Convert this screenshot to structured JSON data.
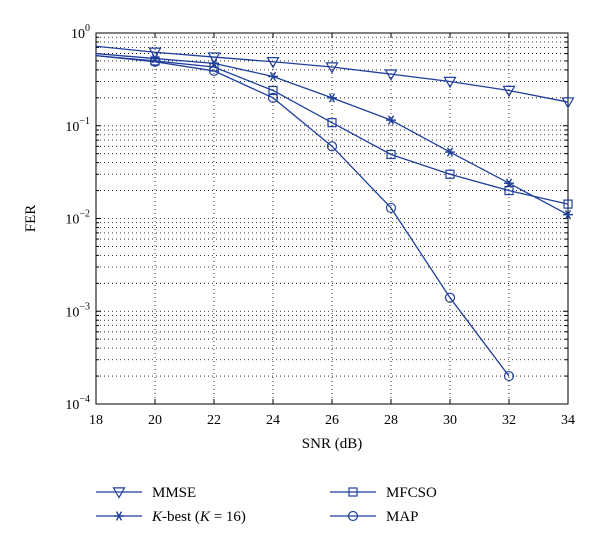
{
  "chart_data": {
    "type": "line",
    "title": "",
    "xlabel": "SNR (dB)",
    "ylabel": "FER",
    "xscale": "linear",
    "yscale": "log",
    "xlim": [
      18,
      34
    ],
    "ylim": [
      0.0001,
      1
    ],
    "xticks": [
      18,
      20,
      22,
      24,
      26,
      28,
      30,
      32,
      34
    ],
    "xtick_labels": [
      "18",
      "20",
      "22",
      "24",
      "26",
      "28",
      "30",
      "32",
      "34"
    ],
    "yticks": [
      1,
      0.1,
      0.01,
      0.001,
      0.0001
    ],
    "ytick_labels": [
      {
        "base": "10",
        "exp": "0"
      },
      {
        "base": "10",
        "exp": "−1"
      },
      {
        "base": "10",
        "exp": "−2"
      },
      {
        "base": "10",
        "exp": "−3"
      },
      {
        "base": "10",
        "exp": "−4"
      }
    ],
    "grid": "dotted, major and minor",
    "legend_position": "below plot, two columns",
    "series": [
      {
        "name": "MMSE",
        "legend_parts": [
          {
            "text": "MMSE",
            "italic": false
          }
        ],
        "marker": "triangle-down",
        "color": "#1f3f9a",
        "x": [
          18,
          20,
          22,
          24,
          26,
          28,
          30,
          32,
          34
        ],
        "y": [
          0.72,
          0.62,
          0.55,
          0.49,
          0.43,
          0.36,
          0.3,
          0.24,
          0.18
        ],
        "marker_x": [
          20,
          22,
          24,
          26,
          28,
          30,
          32,
          34
        ]
      },
      {
        "name": "K-best (K = 16)",
        "legend_parts": [
          {
            "text": "K",
            "italic": true
          },
          {
            "text": "-best (",
            "italic": false
          },
          {
            "text": "K",
            "italic": true
          },
          {
            "text": " = 16)",
            "italic": false
          }
        ],
        "marker": "asterisk",
        "color": "#1f3f9a",
        "x": [
          18,
          20,
          22,
          24,
          26,
          28,
          30,
          32,
          34
        ],
        "y": [
          0.6,
          0.53,
          0.47,
          0.34,
          0.2,
          0.115,
          0.052,
          0.024,
          0.011
        ],
        "marker_x": [
          20,
          22,
          24,
          26,
          28,
          30,
          32,
          34
        ]
      },
      {
        "name": "MFCSO",
        "legend_parts": [
          {
            "text": "MFCSO",
            "italic": false
          }
        ],
        "marker": "square",
        "color": "#1f3f9a",
        "x": [
          18,
          20,
          22,
          24,
          26,
          28,
          30,
          32,
          34
        ],
        "y": [
          0.57,
          0.5,
          0.43,
          0.24,
          0.108,
          0.049,
          0.03,
          0.02,
          0.0143
        ],
        "marker_x": [
          20,
          22,
          24,
          26,
          28,
          30,
          32,
          34
        ]
      },
      {
        "name": "MAP",
        "legend_parts": [
          {
            "text": "MAP",
            "italic": false
          }
        ],
        "marker": "circle",
        "color": "#1f3f9a",
        "x": [
          18,
          20,
          22,
          24,
          26,
          28,
          30,
          32
        ],
        "y": [
          0.57,
          0.49,
          0.39,
          0.2,
          0.06,
          0.013,
          0.0014,
          0.0002
        ],
        "marker_x": [
          20,
          22,
          24,
          26,
          28,
          30,
          32
        ]
      }
    ]
  }
}
